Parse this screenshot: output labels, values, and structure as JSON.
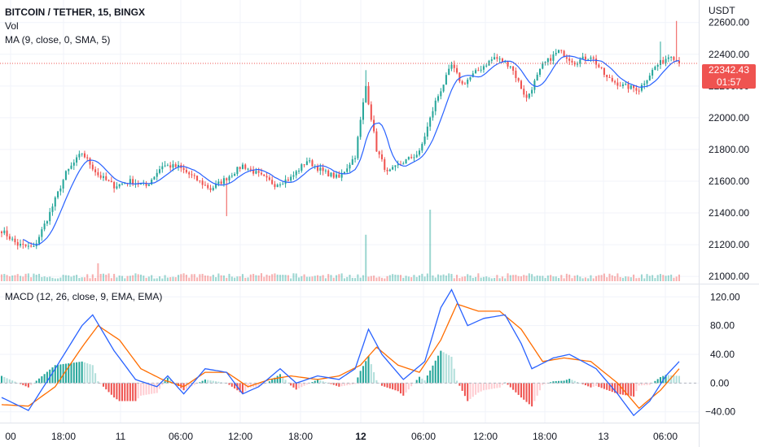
{
  "legend": {
    "symbol": "BITCOIN / TETHER, 15, BINGX",
    "volume": "Vol",
    "ma": "MA (9, close, 0, SMA, 5)",
    "macd": "MACD (12, 26, close, 9, EMA, EMA)"
  },
  "currency": "USDT",
  "last_price": "22342.43",
  "countdown": "01:57",
  "colors": {
    "up": "#26a69a",
    "down": "#ef5350",
    "ma": "#2962ff",
    "macd": "#2962ff",
    "signal": "#ff6d00",
    "grid": "#f0f3fa"
  },
  "chart_data": [
    {
      "type": "candlestick",
      "price_axis": {
        "ticks": [
          21000,
          21200,
          21400,
          21600,
          21800,
          22000,
          22200,
          22400,
          22600
        ],
        "ylim": [
          20970,
          22660
        ]
      },
      "x_ticks": [
        {
          "label": "00",
          "bold": false
        },
        {
          "label": "18:00",
          "bold": false
        },
        {
          "label": "11",
          "bold": false
        },
        {
          "label": "06:00",
          "bold": false
        },
        {
          "label": "12:00",
          "bold": false
        },
        {
          "label": "18:00",
          "bold": false
        },
        {
          "label": "12",
          "bold": true
        },
        {
          "label": "06:00",
          "bold": false
        },
        {
          "label": "12:00",
          "bold": false
        },
        {
          "label": "18:00",
          "bold": false
        },
        {
          "label": "13",
          "bold": false
        },
        {
          "label": "06:00",
          "bold": false
        }
      ],
      "close_anchors": [
        [
          0,
          21290
        ],
        [
          6,
          21200
        ],
        [
          12,
          21180
        ],
        [
          18,
          21400
        ],
        [
          24,
          21650
        ],
        [
          30,
          21780
        ],
        [
          36,
          21640
        ],
        [
          42,
          21570
        ],
        [
          48,
          21600
        ],
        [
          54,
          21570
        ],
        [
          60,
          21700
        ],
        [
          66,
          21690
        ],
        [
          72,
          21620
        ],
        [
          78,
          21550
        ],
        [
          84,
          21620
        ],
        [
          90,
          21700
        ],
        [
          96,
          21640
        ],
        [
          102,
          21580
        ],
        [
          108,
          21620
        ],
        [
          114,
          21730
        ],
        [
          120,
          21660
        ],
        [
          126,
          21620
        ],
        [
          132,
          21760
        ],
        [
          136,
          22200
        ],
        [
          140,
          21800
        ],
        [
          144,
          21650
        ],
        [
          150,
          21720
        ],
        [
          156,
          21780
        ],
        [
          162,
          22100
        ],
        [
          168,
          22330
        ],
        [
          172,
          22210
        ],
        [
          178,
          22300
        ],
        [
          184,
          22380
        ],
        [
          190,
          22330
        ],
        [
          196,
          22120
        ],
        [
          202,
          22330
        ],
        [
          208,
          22420
        ],
        [
          214,
          22350
        ],
        [
          220,
          22390
        ],
        [
          226,
          22250
        ],
        [
          232,
          22200
        ],
        [
          238,
          22180
        ],
        [
          244,
          22320
        ],
        [
          250,
          22400
        ],
        [
          253,
          22342
        ]
      ],
      "volume_spikes": [
        [
          36,
          1.0
        ],
        [
          136,
          2.6
        ],
        [
          160,
          4.0
        ]
      ],
      "ma_period": 9,
      "last_price": 22342.43
    },
    {
      "type": "line",
      "title": "MACD (12, 26, close, 9, EMA, EMA)",
      "y_ticks": [
        -40,
        0,
        40,
        80,
        120
      ],
      "ylim": [
        -55,
        135
      ],
      "series": [
        {
          "values_anchors": [
            [
              0,
              -20
            ],
            [
              10,
              -38
            ],
            [
              20,
              20
            ],
            [
              30,
              80
            ],
            [
              34,
              95
            ],
            [
              42,
              45
            ],
            [
              50,
              5
            ],
            [
              58,
              -5
            ],
            [
              62,
              10
            ],
            [
              68,
              -15
            ],
            [
              76,
              20
            ],
            [
              84,
              15
            ],
            [
              90,
              -15
            ],
            [
              96,
              -5
            ],
            [
              104,
              20
            ],
            [
              110,
              0
            ],
            [
              118,
              10
            ],
            [
              126,
              5
            ],
            [
              132,
              20
            ],
            [
              137,
              75
            ],
            [
              142,
              40
            ],
            [
              150,
              5
            ],
            [
              158,
              30
            ],
            [
              164,
              105
            ],
            [
              168,
              130
            ],
            [
              174,
              80
            ],
            [
              180,
              90
            ],
            [
              188,
              95
            ],
            [
              194,
              55
            ],
            [
              198,
              20
            ],
            [
              206,
              35
            ],
            [
              212,
              40
            ],
            [
              222,
              20
            ],
            [
              230,
              -15
            ],
            [
              236,
              -45
            ],
            [
              242,
              -25
            ],
            [
              248,
              10
            ],
            [
              253,
              30
            ]
          ]
        },
        {
          "values_anchors": [
            [
              0,
              -30
            ],
            [
              10,
              -32
            ],
            [
              20,
              -5
            ],
            [
              30,
              50
            ],
            [
              36,
              80
            ],
            [
              44,
              60
            ],
            [
              52,
              20
            ],
            [
              60,
              5
            ],
            [
              68,
              -5
            ],
            [
              76,
              15
            ],
            [
              84,
              15
            ],
            [
              92,
              -5
            ],
            [
              100,
              5
            ],
            [
              108,
              10
            ],
            [
              118,
              5
            ],
            [
              126,
              10
            ],
            [
              134,
              25
            ],
            [
              140,
              50
            ],
            [
              148,
              25
            ],
            [
              156,
              15
            ],
            [
              164,
              60
            ],
            [
              170,
              110
            ],
            [
              178,
              100
            ],
            [
              186,
              100
            ],
            [
              194,
              75
            ],
            [
              202,
              30
            ],
            [
              210,
              35
            ],
            [
              220,
              30
            ],
            [
              230,
              0
            ],
            [
              238,
              -35
            ],
            [
              246,
              -10
            ],
            [
              253,
              20
            ]
          ]
        }
      ]
    }
  ]
}
